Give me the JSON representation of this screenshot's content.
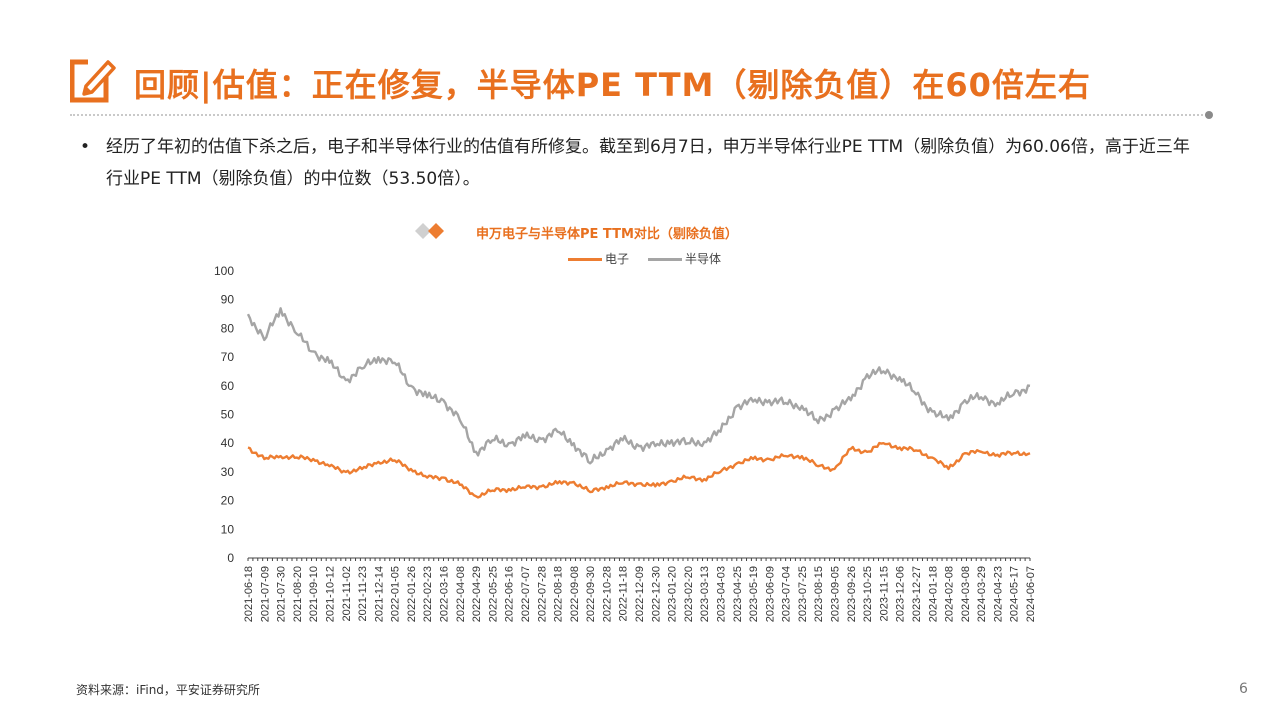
{
  "slide": {
    "title": "回顾|估值：正在修复，半导体PE TTM（剔除负值）在60倍左右",
    "bullet": "经历了年初的估值下杀之后，电子和半导体行业的估值有所修复。截至到6月7日，申万半导体行业PE TTM（剔除负值）为60.06倍，高于近三年行业PE TTM（剔除负值）的中位数（53.50倍）。",
    "source": "资料来源：iFind，平安证券研究所",
    "page_number": "6"
  },
  "colors": {
    "accent": "#e8701f",
    "series_electronics": "#ed7d31",
    "series_semis": "#a5a5a5"
  },
  "chart_data": {
    "type": "line",
    "title": "申万电子与半导体PE TTM对比（剔除负值）",
    "legend_position": "top",
    "ylim": [
      0,
      100
    ],
    "yticks": [
      0,
      10,
      20,
      30,
      40,
      50,
      60,
      70,
      80,
      90,
      100
    ],
    "x": [
      "2021-06-18",
      "2021-07-09",
      "2021-07-30",
      "2021-08-20",
      "2021-09-10",
      "2021-10-12",
      "2021-11-02",
      "2021-11-23",
      "2021-12-14",
      "2022-01-05",
      "2022-01-26",
      "2022-02-23",
      "2022-03-16",
      "2022-04-08",
      "2022-04-29",
      "2022-05-25",
      "2022-06-16",
      "2022-07-07",
      "2022-07-28",
      "2022-08-18",
      "2022-09-08",
      "2022-09-30",
      "2022-10-28",
      "2022-11-18",
      "2022-12-09",
      "2022-12-30",
      "2023-01-20",
      "2023-02-20",
      "2023-03-13",
      "2023-04-03",
      "2023-04-25",
      "2023-05-19",
      "2023-06-09",
      "2023-07-04",
      "2023-07-25",
      "2023-08-15",
      "2023-09-05",
      "2023-09-26",
      "2023-10-25",
      "2023-11-15",
      "2023-12-06",
      "2023-12-27",
      "2024-01-18",
      "2024-02-08",
      "2024-03-08",
      "2024-03-29",
      "2024-04-23",
      "2024-05-17",
      "2024-06-07"
    ],
    "series": [
      {
        "name": "电子",
        "values": [
          38.5,
          34.5,
          35.5,
          35,
          34.5,
          32,
          30,
          31,
          33.5,
          34,
          31,
          28,
          28,
          25.5,
          21.5,
          23.5,
          24,
          24.5,
          25,
          26,
          26.5,
          23,
          25,
          26,
          26,
          25,
          27,
          28,
          27.5,
          30,
          33,
          34.5,
          34.5,
          35.5,
          35.5,
          32,
          31,
          38,
          37,
          40,
          38.5,
          37.5,
          35,
          31,
          36.5,
          37,
          36,
          36.5,
          36.5
        ]
      },
      {
        "name": "半导体",
        "values": [
          85,
          76,
          87,
          78,
          72,
          68,
          62,
          66,
          70,
          68,
          60,
          56,
          55,
          48,
          37,
          41,
          40,
          42,
          41.5,
          44,
          40,
          33,
          38,
          41,
          39,
          39,
          41,
          40,
          40.5,
          44,
          53,
          54.5,
          55,
          54,
          53,
          47,
          52,
          55,
          64,
          65,
          63,
          57,
          51,
          48,
          55,
          56,
          54,
          57,
          60
        ]
      }
    ]
  }
}
